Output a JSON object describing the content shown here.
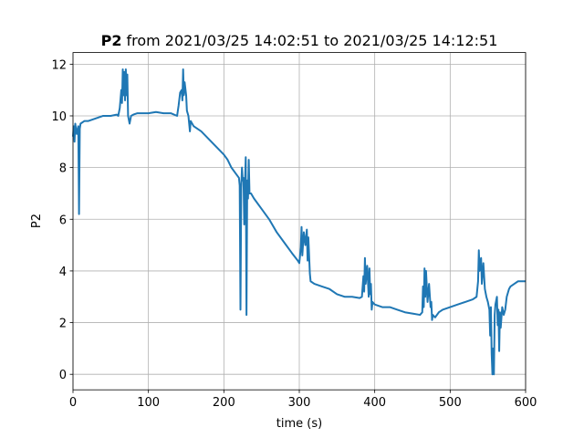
{
  "chart_data": {
    "type": "line",
    "title_parts": [
      "P2",
      "from 2021/03/25 14:02:51 to 2021/03/25 14:12:51"
    ],
    "xlabel": "time (s)",
    "ylabel": "P2",
    "color": "#1f77b4",
    "grid": true,
    "xlim": [
      0,
      600
    ],
    "xticks": [
      0,
      100,
      200,
      300,
      400,
      500,
      600
    ],
    "ylim": [
      -0.6,
      12.45
    ],
    "yticks": [
      0,
      2,
      4,
      6,
      8,
      10,
      12
    ],
    "x": [
      0,
      1,
      2,
      3,
      5,
      7,
      8,
      9,
      10,
      15,
      20,
      30,
      40,
      50,
      58,
      60,
      62,
      64,
      65,
      66,
      67,
      68,
      69,
      70,
      71,
      72,
      73,
      75,
      77,
      80,
      85,
      100,
      110,
      120,
      130,
      138,
      140,
      142,
      144,
      145,
      146,
      147,
      148,
      150,
      151,
      153,
      155,
      156,
      160,
      170,
      180,
      190,
      200,
      205,
      210,
      215,
      220,
      221,
      222,
      223,
      224,
      225,
      226,
      227,
      228,
      229,
      230,
      231,
      232,
      233,
      234,
      236,
      240,
      250,
      260,
      270,
      280,
      290,
      298,
      300,
      302,
      303,
      304,
      306,
      308,
      310,
      311,
      312,
      313,
      314,
      315,
      320,
      330,
      340,
      350,
      360,
      370,
      380,
      383,
      385,
      386,
      387,
      388,
      390,
      392,
      393,
      394,
      395,
      396,
      397,
      400,
      410,
      420,
      430,
      440,
      450,
      460,
      463,
      464,
      465,
      466,
      467,
      468,
      470,
      472,
      474,
      475,
      476,
      477,
      480,
      485,
      490,
      500,
      510,
      520,
      530,
      535,
      537,
      538,
      539,
      541,
      542,
      544,
      546,
      548,
      550,
      552,
      553,
      554,
      555,
      556,
      557,
      558,
      559,
      560,
      562,
      563,
      564,
      565,
      566,
      567,
      569,
      571,
      573,
      575,
      578,
      580,
      585,
      590,
      595,
      600
    ],
    "values": [
      9.2,
      9.6,
      9.0,
      9.7,
      9.3,
      9.6,
      6.2,
      9.5,
      9.7,
      9.8,
      9.8,
      9.9,
      10.0,
      10.0,
      10.05,
      10.0,
      10.3,
      11.0,
      10.5,
      11.8,
      10.8,
      11.7,
      10.6,
      11.8,
      10.8,
      11.6,
      10.0,
      9.7,
      10.0,
      10.05,
      10.1,
      10.1,
      10.15,
      10.1,
      10.1,
      10.0,
      10.4,
      10.9,
      11.0,
      10.6,
      11.8,
      10.8,
      11.3,
      10.8,
      10.2,
      10.0,
      9.4,
      9.8,
      9.6,
      9.4,
      9.1,
      8.8,
      8.5,
      8.3,
      8.0,
      7.8,
      7.6,
      7.3,
      2.5,
      7.2,
      8.0,
      7.5,
      7.6,
      5.8,
      7.4,
      8.4,
      2.3,
      7.5,
      6.8,
      8.3,
      7.0,
      7.0,
      6.8,
      6.4,
      6.0,
      5.5,
      5.1,
      4.7,
      4.4,
      4.3,
      4.9,
      5.7,
      4.6,
      5.5,
      5.0,
      5.6,
      4.4,
      5.3,
      4.6,
      3.9,
      3.6,
      3.5,
      3.4,
      3.3,
      3.1,
      3.0,
      3.0,
      2.95,
      3.0,
      3.8,
      3.2,
      4.5,
      3.5,
      4.2,
      3.0,
      4.1,
      3.1,
      3.5,
      2.5,
      2.8,
      2.7,
      2.6,
      2.6,
      2.5,
      2.4,
      2.35,
      2.3,
      2.4,
      3.4,
      2.6,
      4.1,
      3.0,
      4.0,
      2.8,
      3.5,
      2.6,
      2.8,
      2.1,
      2.3,
      2.2,
      2.4,
      2.5,
      2.6,
      2.7,
      2.8,
      2.9,
      3.0,
      3.6,
      4.8,
      4.0,
      4.5,
      3.5,
      4.3,
      3.3,
      3.0,
      2.8,
      2.5,
      1.5,
      2.6,
      0.8,
      0.0,
      1.0,
      0.0,
      2.3,
      2.7,
      3.0,
      1.9,
      2.5,
      0.9,
      2.4,
      1.8,
      2.6,
      2.3,
      2.5,
      3.0,
      3.3,
      3.4,
      3.5,
      3.6,
      3.6,
      3.6
    ]
  }
}
